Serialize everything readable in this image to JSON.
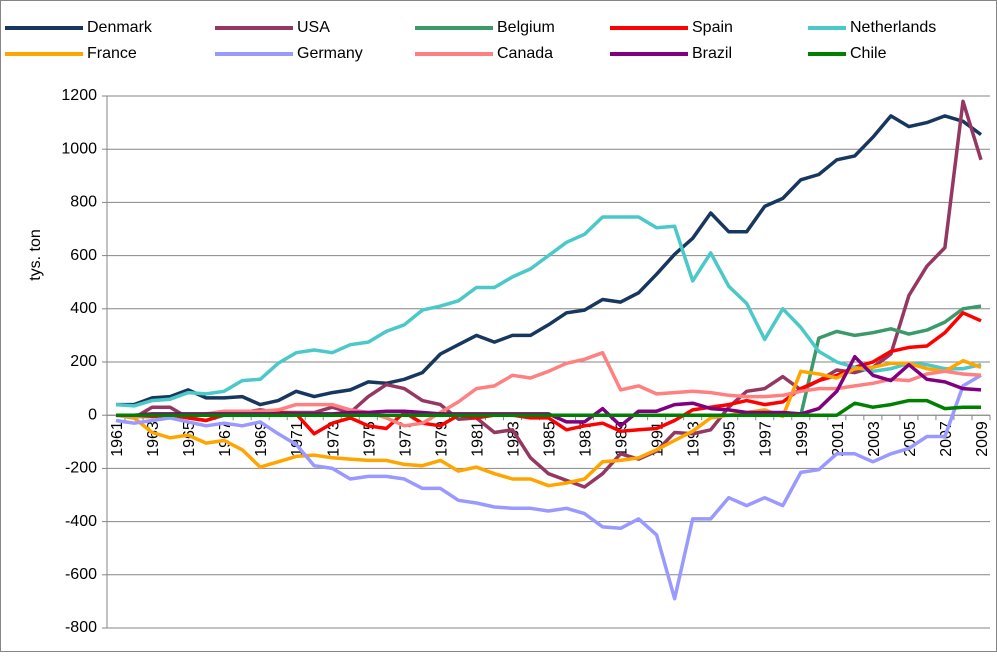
{
  "chart_data": {
    "type": "line",
    "y_label": "tys. ton",
    "categories": [
      "1961",
      null,
      "1963",
      null,
      "1965",
      null,
      "1967",
      null,
      "1969",
      null,
      "1971",
      null,
      "1973",
      null,
      "1975",
      null,
      "1977",
      null,
      "1979",
      null,
      "1981",
      null,
      "1983",
      null,
      "1985",
      null,
      "1987",
      null,
      "1989",
      null,
      "1991",
      null,
      "1993",
      null,
      "1995",
      null,
      "1997",
      null,
      "1999",
      null,
      "2001",
      null,
      "2003",
      null,
      "2005",
      null,
      "2007",
      null,
      "2009"
    ],
    "ylim": [
      -800,
      1200
    ],
    "yticks": [
      -800,
      -600,
      -400,
      -200,
      0,
      200,
      400,
      600,
      800,
      1000,
      1200
    ],
    "grid": true,
    "legend": "top",
    "series": [
      {
        "name": "Denmark",
        "color": "#17375e",
        "values": [
          40,
          40,
          65,
          70,
          95,
          65,
          65,
          70,
          40,
          55,
          90,
          70,
          85,
          95,
          125,
          120,
          135,
          160,
          230,
          265,
          300,
          275,
          300,
          300,
          340,
          385,
          395,
          435,
          425,
          460,
          530,
          605,
          665,
          760,
          690,
          690,
          785,
          815,
          885,
          905,
          960,
          975,
          1045,
          1125,
          1085,
          1100,
          1125,
          1105,
          1055
        ]
      },
      {
        "name": "USA",
        "color": "#953763",
        "values": [
          0,
          -10,
          30,
          30,
          -10,
          -20,
          0,
          10,
          20,
          10,
          10,
          10,
          30,
          10,
          70,
          115,
          100,
          55,
          40,
          -15,
          -10,
          -65,
          -55,
          -160,
          -220,
          -245,
          -270,
          -220,
          -145,
          -165,
          -135,
          -65,
          -70,
          -55,
          30,
          90,
          100,
          145,
          95,
          130,
          170,
          160,
          180,
          230,
          450,
          560,
          630,
          1180,
          960
        ]
      },
      {
        "name": "Belgium",
        "color": "#3a9a6a",
        "values": [
          0,
          0,
          0,
          0,
          0,
          0,
          0,
          0,
          0,
          0,
          0,
          0,
          0,
          0,
          0,
          0,
          0,
          0,
          0,
          0,
          0,
          0,
          0,
          0,
          0,
          0,
          0,
          0,
          0,
          0,
          0,
          0,
          0,
          0,
          0,
          0,
          0,
          0,
          0,
          290,
          315,
          300,
          310,
          325,
          305,
          320,
          350,
          400,
          410
        ]
      },
      {
        "name": "Spain",
        "color": "#ff0000",
        "values": [
          0,
          -5,
          -5,
          0,
          -10,
          -20,
          5,
          10,
          10,
          10,
          5,
          -70,
          -30,
          -10,
          -40,
          -50,
          10,
          -30,
          -40,
          0,
          -10,
          0,
          0,
          -10,
          -10,
          -55,
          -40,
          -30,
          -60,
          -55,
          -50,
          -20,
          20,
          30,
          40,
          55,
          40,
          50,
          100,
          130,
          150,
          180,
          200,
          240,
          255,
          260,
          310,
          385,
          355
        ]
      },
      {
        "name": "Netherlands",
        "color": "#4bc8c8",
        "values": [
          40,
          35,
          55,
          60,
          85,
          80,
          90,
          130,
          135,
          195,
          235,
          245,
          235,
          265,
          275,
          315,
          340,
          395,
          410,
          430,
          480,
          480,
          520,
          550,
          600,
          650,
          680,
          745,
          745,
          745,
          705,
          710,
          505,
          610,
          485,
          420,
          285,
          400,
          330,
          240,
          200,
          180,
          165,
          175,
          195,
          190,
          175,
          175,
          190
        ]
      },
      {
        "name": "France",
        "color": "#ffa500",
        "values": [
          0,
          -10,
          -65,
          -85,
          -75,
          -105,
          -95,
          -130,
          -195,
          -175,
          -155,
          -150,
          -160,
          -165,
          -170,
          -170,
          -185,
          -190,
          -170,
          -210,
          -195,
          -220,
          -240,
          -240,
          -265,
          -255,
          -240,
          -175,
          -170,
          -160,
          -130,
          -95,
          -60,
          -10,
          0,
          10,
          20,
          -5,
          165,
          155,
          140,
          175,
          180,
          195,
          195,
          175,
          165,
          205,
          180
        ]
      },
      {
        "name": "Germany",
        "color": "#9999ff",
        "values": [
          -20,
          -30,
          -20,
          -10,
          -25,
          -40,
          -30,
          -40,
          -25,
          -70,
          -110,
          -190,
          -200,
          -240,
          -230,
          -230,
          -240,
          -275,
          -275,
          -320,
          -330,
          -345,
          -350,
          -350,
          -360,
          -350,
          -370,
          -420,
          -425,
          -390,
          -450,
          -690,
          -390,
          -390,
          -310,
          -340,
          -310,
          -340,
          -215,
          -205,
          -145,
          -145,
          -175,
          -145,
          -125,
          -80,
          -80,
          110,
          150
        ]
      },
      {
        "name": "Canada",
        "color": "#ff8080",
        "values": [
          0,
          -5,
          0,
          5,
          0,
          5,
          15,
          15,
          15,
          20,
          40,
          40,
          40,
          20,
          10,
          -10,
          -40,
          -30,
          10,
          50,
          100,
          110,
          150,
          140,
          165,
          195,
          210,
          235,
          95,
          110,
          80,
          85,
          90,
          85,
          75,
          70,
          70,
          75,
          90,
          100,
          100,
          110,
          120,
          135,
          130,
          155,
          165,
          155,
          150
        ]
      },
      {
        "name": "Brazil",
        "color": "#800080",
        "values": [
          0,
          0,
          5,
          5,
          5,
          5,
          5,
          5,
          5,
          5,
          5,
          5,
          5,
          10,
          10,
          15,
          15,
          10,
          5,
          5,
          5,
          5,
          5,
          5,
          5,
          -25,
          -25,
          25,
          -40,
          15,
          15,
          40,
          45,
          25,
          20,
          10,
          10,
          10,
          5,
          25,
          90,
          220,
          150,
          130,
          190,
          135,
          125,
          100,
          95
        ]
      },
      {
        "name": "Chile",
        "color": "#008000",
        "values": [
          0,
          0,
          0,
          0,
          0,
          0,
          0,
          0,
          0,
          0,
          0,
          0,
          0,
          0,
          0,
          0,
          0,
          0,
          0,
          0,
          0,
          0,
          0,
          0,
          0,
          0,
          0,
          0,
          0,
          0,
          0,
          0,
          0,
          0,
          0,
          0,
          0,
          0,
          0,
          0,
          0,
          45,
          30,
          40,
          55,
          55,
          25,
          30,
          30
        ]
      }
    ]
  }
}
